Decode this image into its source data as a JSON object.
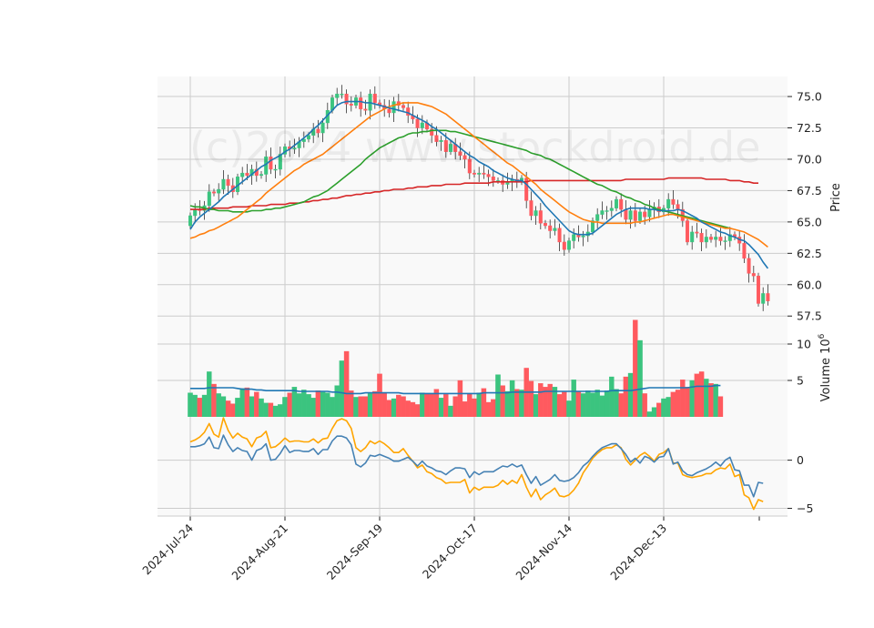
{
  "chart_data": {
    "type": "candlestick",
    "watermark": "(c)2024 www.stockdroid.de",
    "colors": {
      "up": "#3bc47f",
      "down": "#ff5a5f",
      "ma_short": "#1f77b4",
      "ma_mid": "#ff7f0e",
      "ma_long": "#2ca02c",
      "ma_longest": "#d62728",
      "volume_ma": "#1f77b4",
      "osc_a": "#4682b4",
      "osc_b": "#ffa500",
      "grid": "#cccccc",
      "panel_bg": "#f9f9f9"
    },
    "x_tick_labels": [
      "2024-Jul-24",
      "2024-Aug-21",
      "2024-Sep-19",
      "2024-Oct-17",
      "2024-Nov-14",
      "2024-Dec-13"
    ],
    "x_tick_index": [
      0,
      20,
      40,
      60,
      80,
      100
    ],
    "price_panel": {
      "ylabel": "Price",
      "ylim": [
        57.3,
        76.6
      ],
      "y_ticks": [
        57.5,
        60.0,
        62.5,
        65.0,
        67.5,
        70.0,
        72.5,
        75.0
      ],
      "y_tick_labels": [
        "57.5",
        "60.0",
        "62.5",
        "65.0",
        "67.5",
        "70.0",
        "72.5",
        "75.0"
      ],
      "close": [
        65.5,
        66.0,
        65.9,
        66.3,
        67.4,
        67.3,
        67.6,
        68.4,
        67.9,
        67.4,
        68.6,
        68.9,
        68.7,
        69.2,
        68.7,
        68.8,
        70.2,
        69.2,
        69.2,
        70.4,
        71.0,
        70.8,
        70.9,
        71.4,
        71.6,
        71.9,
        72.4,
        72.1,
        72.9,
        73.9,
        74.9,
        75.2,
        75.2,
        74.4,
        74.3,
        74.9,
        74.0,
        73.9,
        75.2,
        74.5,
        74.3,
        74.0,
        73.7,
        74.6,
        74.3,
        74.1,
        73.5,
        73.2,
        72.5,
        72.9,
        72.4,
        71.9,
        71.4,
        71.5,
        70.6,
        71.2,
        70.6,
        70.3,
        70.0,
        68.9,
        68.8,
        68.9,
        68.8,
        68.6,
        68.3,
        68.3,
        68.0,
        68.2,
        68.4,
        68.2,
        68.5,
        66.7,
        65.5,
        65.9,
        64.9,
        64.7,
        64.3,
        64.5,
        63.4,
        62.8,
        63.5,
        64.0,
        63.8,
        63.9,
        64.2,
        65.1,
        65.6,
        65.9,
        65.9,
        66.1,
        66.8,
        66.0,
        65.2,
        65.9,
        65.1,
        65.8,
        65.4,
        66.0,
        66.2,
        65.8,
        66.1,
        66.8,
        66.4,
        66.0,
        65.1,
        63.4,
        64.2,
        64.1,
        63.4,
        63.8,
        63.6,
        63.8,
        63.5,
        63.5,
        64.0,
        63.8,
        63.3,
        62.1,
        60.9,
        60.7,
        58.5,
        59.3,
        58.7
      ],
      "ma_short": [
        64.4,
        65.0,
        65.4,
        65.7,
        66.0,
        66.3,
        66.6,
        67.0,
        67.3,
        67.6,
        67.9,
        68.2,
        68.5,
        68.8,
        69.1,
        69.4,
        69.6,
        69.9,
        70.1,
        70.3,
        70.6,
        70.8,
        71.1,
        71.4,
        71.7,
        72.0,
        72.4,
        72.7,
        73.1,
        73.5,
        73.9,
        74.3,
        74.5,
        74.6,
        74.6,
        74.6,
        74.6,
        74.5,
        74.5,
        74.4,
        74.3,
        74.2,
        74.1,
        74.0,
        73.9,
        73.8,
        73.7,
        73.5,
        73.3,
        73.1,
        72.9,
        72.6,
        72.4,
        72.1,
        71.8,
        71.5,
        71.2,
        70.9,
        70.6,
        70.3,
        70.1,
        69.8,
        69.6,
        69.4,
        69.1,
        68.9,
        68.7,
        68.5,
        68.4,
        68.3,
        68.3,
        68.0,
        67.6,
        67.2,
        66.8,
        66.3,
        65.9,
        65.5,
        65.1,
        64.7,
        64.3,
        64.1,
        64.0,
        64.0,
        64.0,
        64.1,
        64.4,
        64.7,
        65.0,
        65.3,
        65.6,
        65.8,
        66.0,
        66.1,
        66.1,
        66.1,
        66.1,
        66.0,
        66.0,
        65.9,
        65.9,
        65.9,
        65.9,
        66.0,
        65.9,
        65.7,
        65.5,
        65.3,
        65.0,
        64.8,
        64.6,
        64.4,
        64.2,
        64.1,
        63.9,
        63.8,
        63.6,
        63.5,
        63.2,
        62.8,
        62.4,
        61.8,
        61.3
      ],
      "ma_mid": [
        63.7,
        63.8,
        64.0,
        64.1,
        64.3,
        64.4,
        64.6,
        64.8,
        65.0,
        65.2,
        65.4,
        65.7,
        66.0,
        66.3,
        66.6,
        66.9,
        67.3,
        67.6,
        67.9,
        68.2,
        68.5,
        68.8,
        69.1,
        69.3,
        69.6,
        69.8,
        70.0,
        70.2,
        70.4,
        70.7,
        71.0,
        71.3,
        71.6,
        71.9,
        72.2,
        72.5,
        72.8,
        73.1,
        73.4,
        73.6,
        73.8,
        74.0,
        74.2,
        74.3,
        74.4,
        74.5,
        74.5,
        74.5,
        74.5,
        74.4,
        74.3,
        74.2,
        74.0,
        73.8,
        73.6,
        73.3,
        73.0,
        72.7,
        72.4,
        72.1,
        71.8,
        71.5,
        71.2,
        70.9,
        70.6,
        70.3,
        70.0,
        69.7,
        69.5,
        69.2,
        68.9,
        68.6,
        68.3,
        68.0,
        67.6,
        67.3,
        67.0,
        66.7,
        66.4,
        66.1,
        65.8,
        65.6,
        65.4,
        65.2,
        65.1,
        65.0,
        65.0,
        64.9,
        64.9,
        64.9,
        64.9,
        64.9,
        64.9,
        64.9,
        65.0,
        65.0,
        65.1,
        65.2,
        65.3,
        65.4,
        65.5,
        65.6,
        65.6,
        65.5,
        65.4,
        65.3,
        65.2,
        65.1,
        65.0,
        64.9,
        64.8,
        64.7,
        64.6,
        64.5,
        64.5,
        64.4,
        64.3,
        64.2,
        64.0,
        63.8,
        63.6,
        63.3,
        63.0
      ],
      "ma_long": [
        66.3,
        66.2,
        66.2,
        66.1,
        66.0,
        66.0,
        65.9,
        65.9,
        65.9,
        65.8,
        65.8,
        65.8,
        65.8,
        65.9,
        65.9,
        65.9,
        66.0,
        66.0,
        66.1,
        66.1,
        66.2,
        66.3,
        66.4,
        66.5,
        66.6,
        66.8,
        67.0,
        67.1,
        67.3,
        67.5,
        67.8,
        68.1,
        68.4,
        68.7,
        69.0,
        69.3,
        69.6,
        70.0,
        70.3,
        70.6,
        70.9,
        71.1,
        71.3,
        71.5,
        71.7,
        71.8,
        72.0,
        72.1,
        72.1,
        72.2,
        72.2,
        72.3,
        72.3,
        72.3,
        72.3,
        72.2,
        72.2,
        72.1,
        72.0,
        71.9,
        71.8,
        71.7,
        71.6,
        71.5,
        71.4,
        71.3,
        71.2,
        71.1,
        71.0,
        70.9,
        70.8,
        70.7,
        70.5,
        70.4,
        70.3,
        70.1,
        70.0,
        69.8,
        69.6,
        69.4,
        69.2,
        69.0,
        68.8,
        68.6,
        68.4,
        68.2,
        68.0,
        67.9,
        67.7,
        67.5,
        67.4,
        67.2,
        67.0,
        66.9,
        66.7,
        66.6,
        66.4,
        66.3,
        66.1,
        66.0,
        65.9,
        65.8,
        65.7,
        65.6,
        65.5,
        65.4,
        65.3,
        65.2,
        65.1,
        65.0,
        64.9,
        64.8,
        64.7,
        64.6,
        64.5
      ],
      "ma_longest": [
        66.0,
        66.0,
        66.0,
        66.0,
        66.1,
        66.1,
        66.1,
        66.1,
        66.1,
        66.2,
        66.2,
        66.2,
        66.2,
        66.3,
        66.3,
        66.3,
        66.3,
        66.4,
        66.4,
        66.4,
        66.4,
        66.5,
        66.5,
        66.5,
        66.6,
        66.6,
        66.7,
        66.7,
        66.8,
        66.8,
        66.9,
        66.9,
        67.0,
        67.1,
        67.1,
        67.2,
        67.2,
        67.3,
        67.3,
        67.4,
        67.4,
        67.5,
        67.5,
        67.6,
        67.6,
        67.6,
        67.7,
        67.7,
        67.8,
        67.8,
        67.8,
        67.9,
        67.9,
        67.9,
        68.0,
        68.0,
        68.0,
        68.0,
        68.1,
        68.1,
        68.1,
        68.1,
        68.1,
        68.1,
        68.2,
        68.2,
        68.2,
        68.2,
        68.2,
        68.2,
        68.2,
        68.2,
        68.3,
        68.3,
        68.3,
        68.3,
        68.3,
        68.3,
        68.3,
        68.3,
        68.3,
        68.3,
        68.3,
        68.3,
        68.3,
        68.3,
        68.3,
        68.3,
        68.3,
        68.3,
        68.3,
        68.3,
        68.4,
        68.4,
        68.4,
        68.4,
        68.4,
        68.4,
        68.4,
        68.4,
        68.4,
        68.5,
        68.5,
        68.5,
        68.5,
        68.5,
        68.5,
        68.5,
        68.5,
        68.4,
        68.4,
        68.4,
        68.4,
        68.4,
        68.3,
        68.3,
        68.3,
        68.2,
        68.2,
        68.1,
        68.1
      ]
    },
    "volume_panel": {
      "ylabel": "Volume  10",
      "ylabel_exponent": "6",
      "ylim": [
        0,
        13.5
      ],
      "y_ticks": [
        5,
        10
      ],
      "y_tick_labels": [
        "5",
        "10"
      ],
      "volume": [
        3.3,
        3.0,
        2.6,
        3.0,
        6.2,
        4.5,
        3.2,
        2.8,
        2.2,
        1.8,
        2.6,
        3.9,
        4.0,
        2.8,
        3.4,
        2.5,
        1.9,
        1.9,
        1.5,
        1.7,
        2.7,
        3.3,
        4.1,
        3.2,
        3.7,
        3.1,
        2.6,
        3.6,
        3.4,
        3.3,
        2.7,
        4.3,
        7.7,
        9.0,
        3.6,
        2.7,
        2.8,
        2.8,
        3.2,
        3.5,
        5.9,
        3.3,
        2.3,
        2.5,
        3.0,
        2.8,
        2.2,
        2.0,
        1.7,
        3.3,
        3.2,
        3.2,
        3.8,
        2.6,
        3.1,
        1.5,
        2.8,
        5.0,
        2.1,
        3.2,
        2.5,
        3.3,
        3.9,
        2.0,
        2.4,
        5.8,
        4.3,
        3.5,
        5.0,
        3.8,
        3.7,
        6.7,
        4.9,
        3.1,
        4.6,
        4.1,
        4.5,
        4.1,
        3.1,
        3.4,
        2.2,
        5.1,
        3.5,
        3.2,
        3.6,
        3.3,
        3.7,
        2.9,
        3.6,
        5.5,
        3.8,
        3.2,
        5.5,
        6.0,
        13.3,
        10.5,
        3.2,
        0.7,
        1.3,
        1.9,
        2.5,
        2.7,
        3.4,
        3.7,
        5.1,
        4.1,
        5.0,
        5.9,
        6.2,
        5.2,
        4.6,
        4.5,
        2.8
      ],
      "volume_ma": [
        3.9,
        3.9,
        3.9,
        3.9,
        4.0,
        4.0,
        4.0,
        4.0,
        4.0,
        4.0,
        3.9,
        3.8,
        3.8,
        3.8,
        3.7,
        3.7,
        3.6,
        3.6,
        3.6,
        3.6,
        3.6,
        3.6,
        3.6,
        3.5,
        3.5,
        3.5,
        3.5,
        3.5,
        3.5,
        3.5,
        3.4,
        3.4,
        3.3,
        3.2,
        3.2,
        3.2,
        3.2,
        3.3,
        3.3,
        3.3,
        3.3,
        3.3,
        3.3,
        3.3,
        3.3,
        3.2,
        3.2,
        3.2,
        3.2,
        3.2,
        3.2,
        3.2,
        3.2,
        3.2,
        3.2,
        3.2,
        3.2,
        3.2,
        3.2,
        3.2,
        3.2,
        3.2,
        3.3,
        3.3,
        3.3,
        3.3,
        3.3,
        3.3,
        3.4,
        3.4,
        3.4,
        3.4,
        3.4,
        3.4,
        3.4,
        3.5,
        3.5,
        3.5,
        3.5,
        3.5,
        3.5,
        3.5,
        3.5,
        3.5,
        3.5,
        3.5,
        3.5,
        3.5,
        3.5,
        3.6,
        3.6,
        3.6,
        3.6,
        3.6,
        3.7,
        3.8,
        3.9,
        4.0,
        4.0,
        4.0,
        4.0,
        4.0,
        4.0,
        4.0,
        4.0,
        4.0,
        4.1,
        4.2,
        4.2,
        4.2,
        4.2,
        4.3,
        4.3
      ]
    },
    "oscillator_panel": {
      "ylim": [
        -5.8,
        4.5
      ],
      "y_ticks": [
        -5,
        0
      ],
      "y_tick_labels": [
        "−5",
        "0"
      ],
      "series_a": [
        1.4,
        1.4,
        1.5,
        1.7,
        2.4,
        1.3,
        1.2,
        2.6,
        1.6,
        0.9,
        1.3,
        1.0,
        0.9,
        0.0,
        1.0,
        1.2,
        1.7,
        0.0,
        0.1,
        0.7,
        1.5,
        0.8,
        1.0,
        1.0,
        0.9,
        0.9,
        1.2,
        0.6,
        1.1,
        1.1,
        2.0,
        2.5,
        2.5,
        2.3,
        1.6,
        -0.4,
        -0.7,
        -0.3,
        0.5,
        0.4,
        0.6,
        0.4,
        0.2,
        -0.1,
        -0.1,
        0.1,
        0.3,
        -0.1,
        -0.6,
        -0.1,
        -0.6,
        -0.8,
        -1.1,
        -1.2,
        -1.5,
        -1.1,
        -0.8,
        -0.8,
        -0.9,
        -1.8,
        -1.2,
        -1.5,
        -1.2,
        -1.2,
        -1.2,
        -0.9,
        -0.6,
        -0.7,
        -0.4,
        -0.7,
        -0.5,
        -1.5,
        -2.4,
        -1.7,
        -2.6,
        -2.3,
        -2.0,
        -1.5,
        -2.1,
        -2.2,
        -2.1,
        -1.8,
        -1.3,
        -0.6,
        -0.2,
        0.4,
        0.9,
        1.3,
        1.5,
        1.7,
        1.7,
        1.2,
        0.6,
        -0.2,
        0.2,
        -0.3,
        0.4,
        0.2,
        -0.2,
        0.3,
        0.4,
        1.2,
        -0.4,
        -0.2,
        -1.1,
        -1.5,
        -1.6,
        -1.3,
        -1.1,
        -0.9,
        -0.6,
        -0.2,
        -0.6,
        0.0,
        0.3,
        -1.0,
        -1.1,
        -2.6,
        -2.6,
        -3.8,
        -2.3,
        -2.4
      ],
      "series_b": [
        1.9,
        2.1,
        2.4,
        2.9,
        3.8,
        2.7,
        2.4,
        4.4,
        3.1,
        2.3,
        2.8,
        2.4,
        2.2,
        1.4,
        2.3,
        2.5,
        3.0,
        1.3,
        1.4,
        1.8,
        2.3,
        1.9,
        2.0,
        2.0,
        1.9,
        1.9,
        2.2,
        1.8,
        2.2,
        2.3,
        3.3,
        4.1,
        4.3,
        4.1,
        3.3,
        1.3,
        0.9,
        1.3,
        2.0,
        1.7,
        2.0,
        1.7,
        1.3,
        0.8,
        0.8,
        1.2,
        0.5,
        -0.1,
        -0.8,
        -0.5,
        -1.2,
        -1.4,
        -1.8,
        -2.0,
        -2.4,
        -2.3,
        -2.3,
        -2.3,
        -2.0,
        -3.4,
        -2.8,
        -3.1,
        -2.8,
        -2.8,
        -2.8,
        -2.6,
        -2.1,
        -2.5,
        -2.1,
        -2.4,
        -1.5,
        -2.8,
        -3.8,
        -3.0,
        -4.1,
        -3.6,
        -3.3,
        -2.9,
        -3.7,
        -3.8,
        -3.6,
        -3.1,
        -2.4,
        -1.3,
        -0.6,
        0.2,
        0.7,
        1.1,
        1.3,
        1.3,
        1.6,
        1.3,
        0.1,
        -0.5,
        0.0,
        0.5,
        0.8,
        0.4,
        -0.1,
        0.6,
        0.8,
        1.2,
        -0.3,
        -0.3,
        -1.5,
        -1.7,
        -1.8,
        -1.7,
        -1.6,
        -1.4,
        -1.4,
        -1.0,
        -0.8,
        -0.9,
        -0.4,
        -1.7,
        -1.5,
        -3.6,
        -3.9,
        -5.1,
        -4.1,
        -4.3
      ]
    }
  }
}
